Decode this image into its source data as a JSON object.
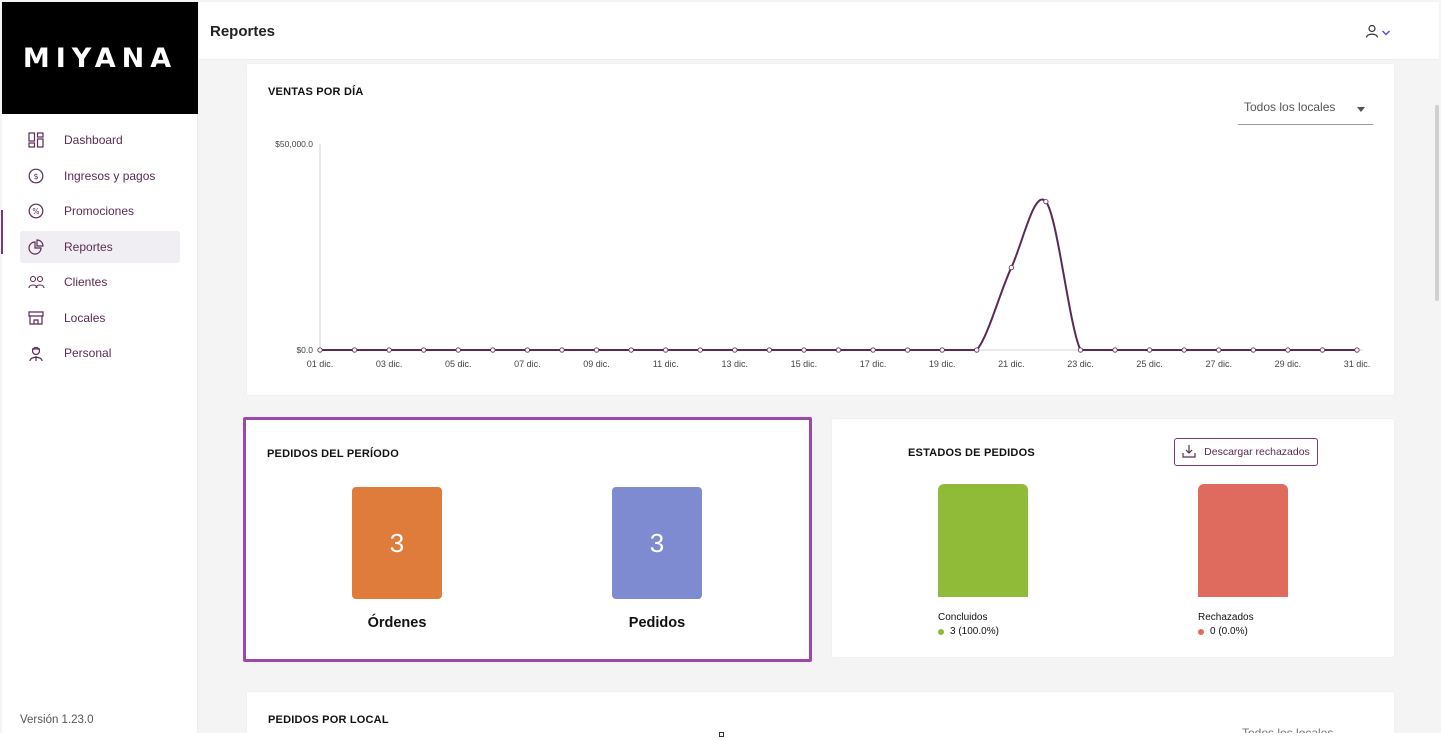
{
  "app": {
    "brand": "MIYANA",
    "version": "Versión 1.23.0"
  },
  "sidebar": {
    "items": [
      {
        "label": "Dashboard",
        "icon": "dashboard-icon",
        "active": false
      },
      {
        "label": "Ingresos y pagos",
        "icon": "dollar-circle-icon",
        "active": false
      },
      {
        "label": "Promociones",
        "icon": "percent-circle-icon",
        "active": false
      },
      {
        "label": "Reportes",
        "icon": "pie-chart-icon",
        "active": true
      },
      {
        "label": "Clientes",
        "icon": "users-icon",
        "active": false
      },
      {
        "label": "Locales",
        "icon": "store-icon",
        "active": false
      },
      {
        "label": "Personal",
        "icon": "staff-icon",
        "active": false
      }
    ]
  },
  "header": {
    "title": "Reportes",
    "user_icon": "user-icon"
  },
  "sales_card": {
    "title": "VENTAS POR DÍA",
    "filter_value": "Todos los locales"
  },
  "chart_data": {
    "type": "line",
    "title": "VENTAS POR DÍA",
    "x": [
      "01 dic.",
      "02 dic.",
      "03 dic.",
      "04 dic.",
      "05 dic.",
      "06 dic.",
      "07 dic.",
      "08 dic.",
      "09 dic.",
      "10 dic.",
      "11 dic.",
      "12 dic.",
      "13 dic.",
      "14 dic.",
      "15 dic.",
      "16 dic.",
      "17 dic.",
      "18 dic.",
      "19 dic.",
      "20 dic.",
      "21 dic.",
      "22 dic.",
      "23 dic.",
      "24 dic.",
      "25 dic.",
      "26 dic.",
      "27 dic.",
      "28 dic.",
      "29 dic.",
      "30 dic.",
      "31 dic."
    ],
    "x_tick_labels": [
      "01 dic.",
      "03 dic.",
      "05 dic.",
      "07 dic.",
      "09 dic.",
      "11 dic.",
      "13 dic.",
      "15 dic.",
      "17 dic.",
      "19 dic.",
      "21 dic.",
      "23 dic.",
      "25 dic.",
      "27 dic.",
      "29 dic.",
      "31 dic."
    ],
    "series": [
      {
        "values": [
          0,
          0,
          0,
          0,
          0,
          0,
          0,
          0,
          0,
          0,
          0,
          0,
          0,
          0,
          0,
          0,
          0,
          0,
          0,
          0,
          20000,
          36000,
          0,
          0,
          0,
          0,
          0,
          0,
          0,
          0,
          0
        ]
      }
    ],
    "y_tick_labels": [
      "$50,000.0",
      "$0.0"
    ],
    "ylim": [
      0,
      50000
    ],
    "line_color": "#5a2a55"
  },
  "period_card": {
    "title": "PEDIDOS DEL PERÍODO",
    "items": [
      {
        "value": "3",
        "label": "Órdenes",
        "color": "#e07c3b"
      },
      {
        "value": "3",
        "label": "Pedidos",
        "color": "#7f8bd0"
      }
    ]
  },
  "estados_card": {
    "title": "ESTADOS DE PEDIDOS",
    "download_label": "Descargar rechazados",
    "statuses": [
      {
        "name": "Concluidos",
        "value": "3 (100.0%)",
        "color": "#8fbb38"
      },
      {
        "name": "Rechazados",
        "value": "0 (0.0%)",
        "color": "#df6b5f"
      }
    ]
  },
  "local_card": {
    "title": "PEDIDOS POR LOCAL",
    "filter_value": "Todos los locales"
  }
}
